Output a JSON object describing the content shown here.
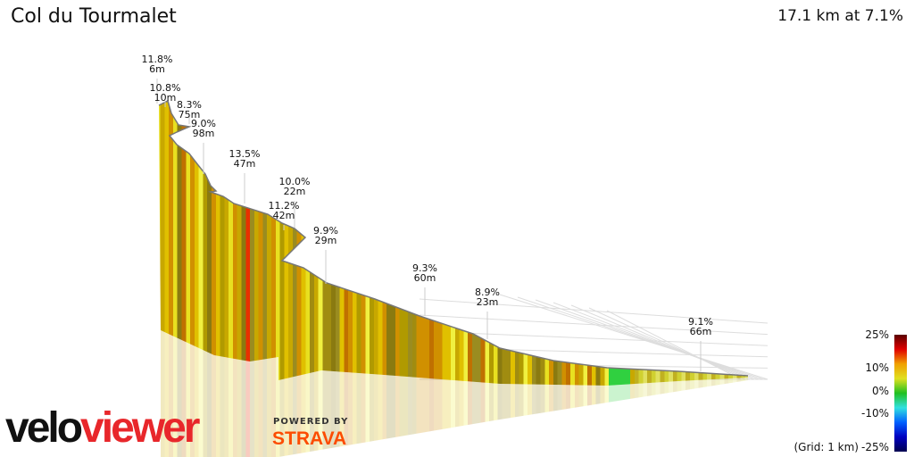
{
  "header": {
    "title": "Col du Tourmalet",
    "summary": "17.1 km at 7.1%"
  },
  "chart_data": {
    "type": "3d-elevation-profile",
    "title": "Col du Tourmalet",
    "distance_km": 17.1,
    "avg_gradient_pct": 7.1,
    "grid_note": "(Grid: 1 km)",
    "annotations": [
      {
        "gradient": "11.8%",
        "length": "6m"
      },
      {
        "gradient": "10.8%",
        "length": "10m"
      },
      {
        "gradient": "8.3%",
        "length": "75m"
      },
      {
        "gradient": "9.0%",
        "length": "98m"
      },
      {
        "gradient": "13.5%",
        "length": "47m"
      },
      {
        "gradient": "10.0%",
        "length": "22m"
      },
      {
        "gradient": "11.2%",
        "length": "42m"
      },
      {
        "gradient": "9.9%",
        "length": "29m"
      },
      {
        "gradient": "9.3%",
        "length": "60m"
      },
      {
        "gradient": "8.9%",
        "length": "23m"
      },
      {
        "gradient": "9.1%",
        "length": "66m"
      }
    ],
    "color_scale": {
      "ticks": [
        "25%",
        "10%",
        "0%",
        "-10%",
        "-25%"
      ],
      "colors": [
        "#5a0000",
        "#e00000",
        "#f0a000",
        "#e0e020",
        "#20c020",
        "#30e0e0",
        "#0060ff",
        "#0000c0",
        "#000050"
      ]
    }
  },
  "branding": {
    "powered_by": "POWERED BY",
    "strava": "STRAVA",
    "logo_a": "velo",
    "logo_b": "viewer"
  }
}
